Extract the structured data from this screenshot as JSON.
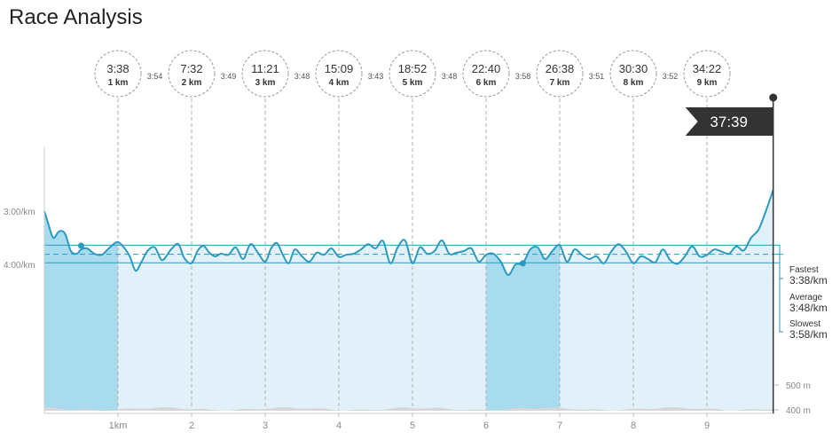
{
  "page": {
    "title": "Race Analysis"
  },
  "colors": {
    "pace_line": "#2a9bc0",
    "highlight_fill": "#a9dbef",
    "base_fill": "#e2f1f9",
    "reference_line": "#2a9bc0",
    "split_circle": "#999999",
    "finish_flag": "#333333",
    "elevation": "#d6d6d6"
  },
  "chart_data": {
    "type": "line",
    "title": "Race Analysis",
    "x_unit": "km",
    "x_range": [
      0,
      9.9
    ],
    "x_ticks": [
      {
        "x": 1,
        "label": "1km"
      },
      {
        "x": 2,
        "label": "2"
      },
      {
        "x": 3,
        "label": "3"
      },
      {
        "x": 4,
        "label": "4"
      },
      {
        "x": 5,
        "label": "5"
      },
      {
        "x": 6,
        "label": "6"
      },
      {
        "x": 7,
        "label": "7"
      },
      {
        "x": 8,
        "label": "8"
      },
      {
        "x": 9,
        "label": "9"
      }
    ],
    "y_unit": "min/km",
    "y_range_top": 1.8,
    "y_range_bottom": 6.8,
    "y_ticks": [
      {
        "value": 3.0,
        "label": "3:00/km"
      },
      {
        "value": 4.0,
        "label": "4:00/km"
      }
    ],
    "elevation_ticks": [
      {
        "label": "500 m",
        "value": 500
      },
      {
        "label": "400 m",
        "value": 400
      }
    ],
    "splits": [
      {
        "km": 1,
        "elapsed": "3:38",
        "km_label": "1 km",
        "split_pace": "3:54"
      },
      {
        "km": 2,
        "elapsed": "7:32",
        "km_label": "2 km",
        "split_pace": "3:49"
      },
      {
        "km": 3,
        "elapsed": "11:21",
        "km_label": "3 km",
        "split_pace": "3:48"
      },
      {
        "km": 4,
        "elapsed": "15:09",
        "km_label": "4 km",
        "split_pace": "3:43"
      },
      {
        "km": 5,
        "elapsed": "18:52",
        "km_label": "5 km",
        "split_pace": "3:48"
      },
      {
        "km": 6,
        "elapsed": "22:40",
        "km_label": "6 km",
        "split_pace": "3:58"
      },
      {
        "km": 7,
        "elapsed": "26:38",
        "km_label": "7 km",
        "split_pace": "3:51"
      },
      {
        "km": 8,
        "elapsed": "30:30",
        "km_label": "8 km",
        "split_pace": "3:52"
      },
      {
        "km": 9,
        "elapsed": "34:22",
        "km_label": "9 km"
      }
    ],
    "finish": {
      "km": 9.9,
      "time": "37:39"
    },
    "highlighted_ranges": [
      [
        0,
        1
      ],
      [
        6,
        7
      ]
    ],
    "markers": [
      {
        "x": 0.5,
        "y": 3.65
      },
      {
        "x": 6.5,
        "y": 3.98
      }
    ],
    "reference_lines": [
      {
        "name": "Fastest",
        "value_label": "3:38/km",
        "y": 3.64
      },
      {
        "name": "Average",
        "value_label": "3:48/km",
        "y": 3.81
      },
      {
        "name": "Slowest",
        "value_label": "3:58/km",
        "y": 3.97
      }
    ],
    "pace_series": {
      "x": [
        0,
        0.05,
        0.12,
        0.2,
        0.28,
        0.36,
        0.44,
        0.5,
        0.58,
        0.68,
        0.78,
        0.86,
        0.94,
        1.0,
        1.08,
        1.16,
        1.24,
        1.32,
        1.4,
        1.5,
        1.6,
        1.72,
        1.82,
        1.9,
        2.0,
        2.08,
        2.16,
        2.24,
        2.32,
        2.4,
        2.5,
        2.6,
        2.7,
        2.8,
        2.9,
        3.0,
        3.08,
        3.16,
        3.24,
        3.32,
        3.4,
        3.5,
        3.6,
        3.7,
        3.8,
        3.9,
        4.0,
        4.1,
        4.2,
        4.3,
        4.4,
        4.5,
        4.6,
        4.7,
        4.8,
        4.9,
        5.0,
        5.1,
        5.2,
        5.3,
        5.4,
        5.5,
        5.6,
        5.7,
        5.8,
        5.9,
        6.0,
        6.1,
        6.2,
        6.3,
        6.4,
        6.5,
        6.6,
        6.7,
        6.8,
        6.9,
        7.0,
        7.1,
        7.2,
        7.3,
        7.4,
        7.5,
        7.6,
        7.7,
        7.8,
        7.9,
        8.0,
        8.1,
        8.2,
        8.3,
        8.4,
        8.5,
        8.6,
        8.7,
        8.8,
        8.9,
        9.0,
        9.1,
        9.2,
        9.3,
        9.4,
        9.5,
        9.6,
        9.7,
        9.8,
        9.9
      ],
      "y": [
        3.0,
        3.22,
        3.5,
        3.38,
        3.42,
        3.75,
        3.8,
        3.72,
        3.7,
        3.8,
        3.82,
        3.72,
        3.62,
        3.58,
        3.68,
        3.85,
        4.12,
        3.95,
        3.75,
        3.68,
        3.92,
        3.72,
        3.62,
        3.88,
        3.98,
        3.75,
        3.65,
        3.78,
        3.85,
        3.8,
        3.82,
        3.68,
        3.9,
        3.62,
        3.78,
        3.95,
        3.7,
        3.6,
        3.82,
        3.98,
        3.72,
        3.85,
        3.95,
        3.78,
        3.82,
        3.7,
        3.86,
        3.82,
        3.8,
        3.72,
        3.62,
        3.7,
        3.56,
        3.98,
        3.68,
        3.55,
        3.98,
        3.68,
        3.8,
        3.75,
        3.55,
        3.8,
        3.78,
        3.75,
        3.7,
        3.95,
        3.82,
        3.8,
        3.95,
        4.2,
        4.0,
        3.98,
        3.72,
        3.68,
        3.9,
        3.75,
        3.64,
        3.95,
        3.72,
        3.82,
        3.9,
        3.85,
        3.98,
        3.76,
        3.62,
        3.76,
        3.98,
        3.85,
        3.9,
        3.96,
        3.72,
        3.92,
        3.99,
        3.85,
        3.66,
        3.85,
        3.82,
        3.72,
        3.76,
        3.8,
        3.66,
        3.74,
        3.5,
        3.35,
        3.0,
        2.6
      ]
    }
  }
}
